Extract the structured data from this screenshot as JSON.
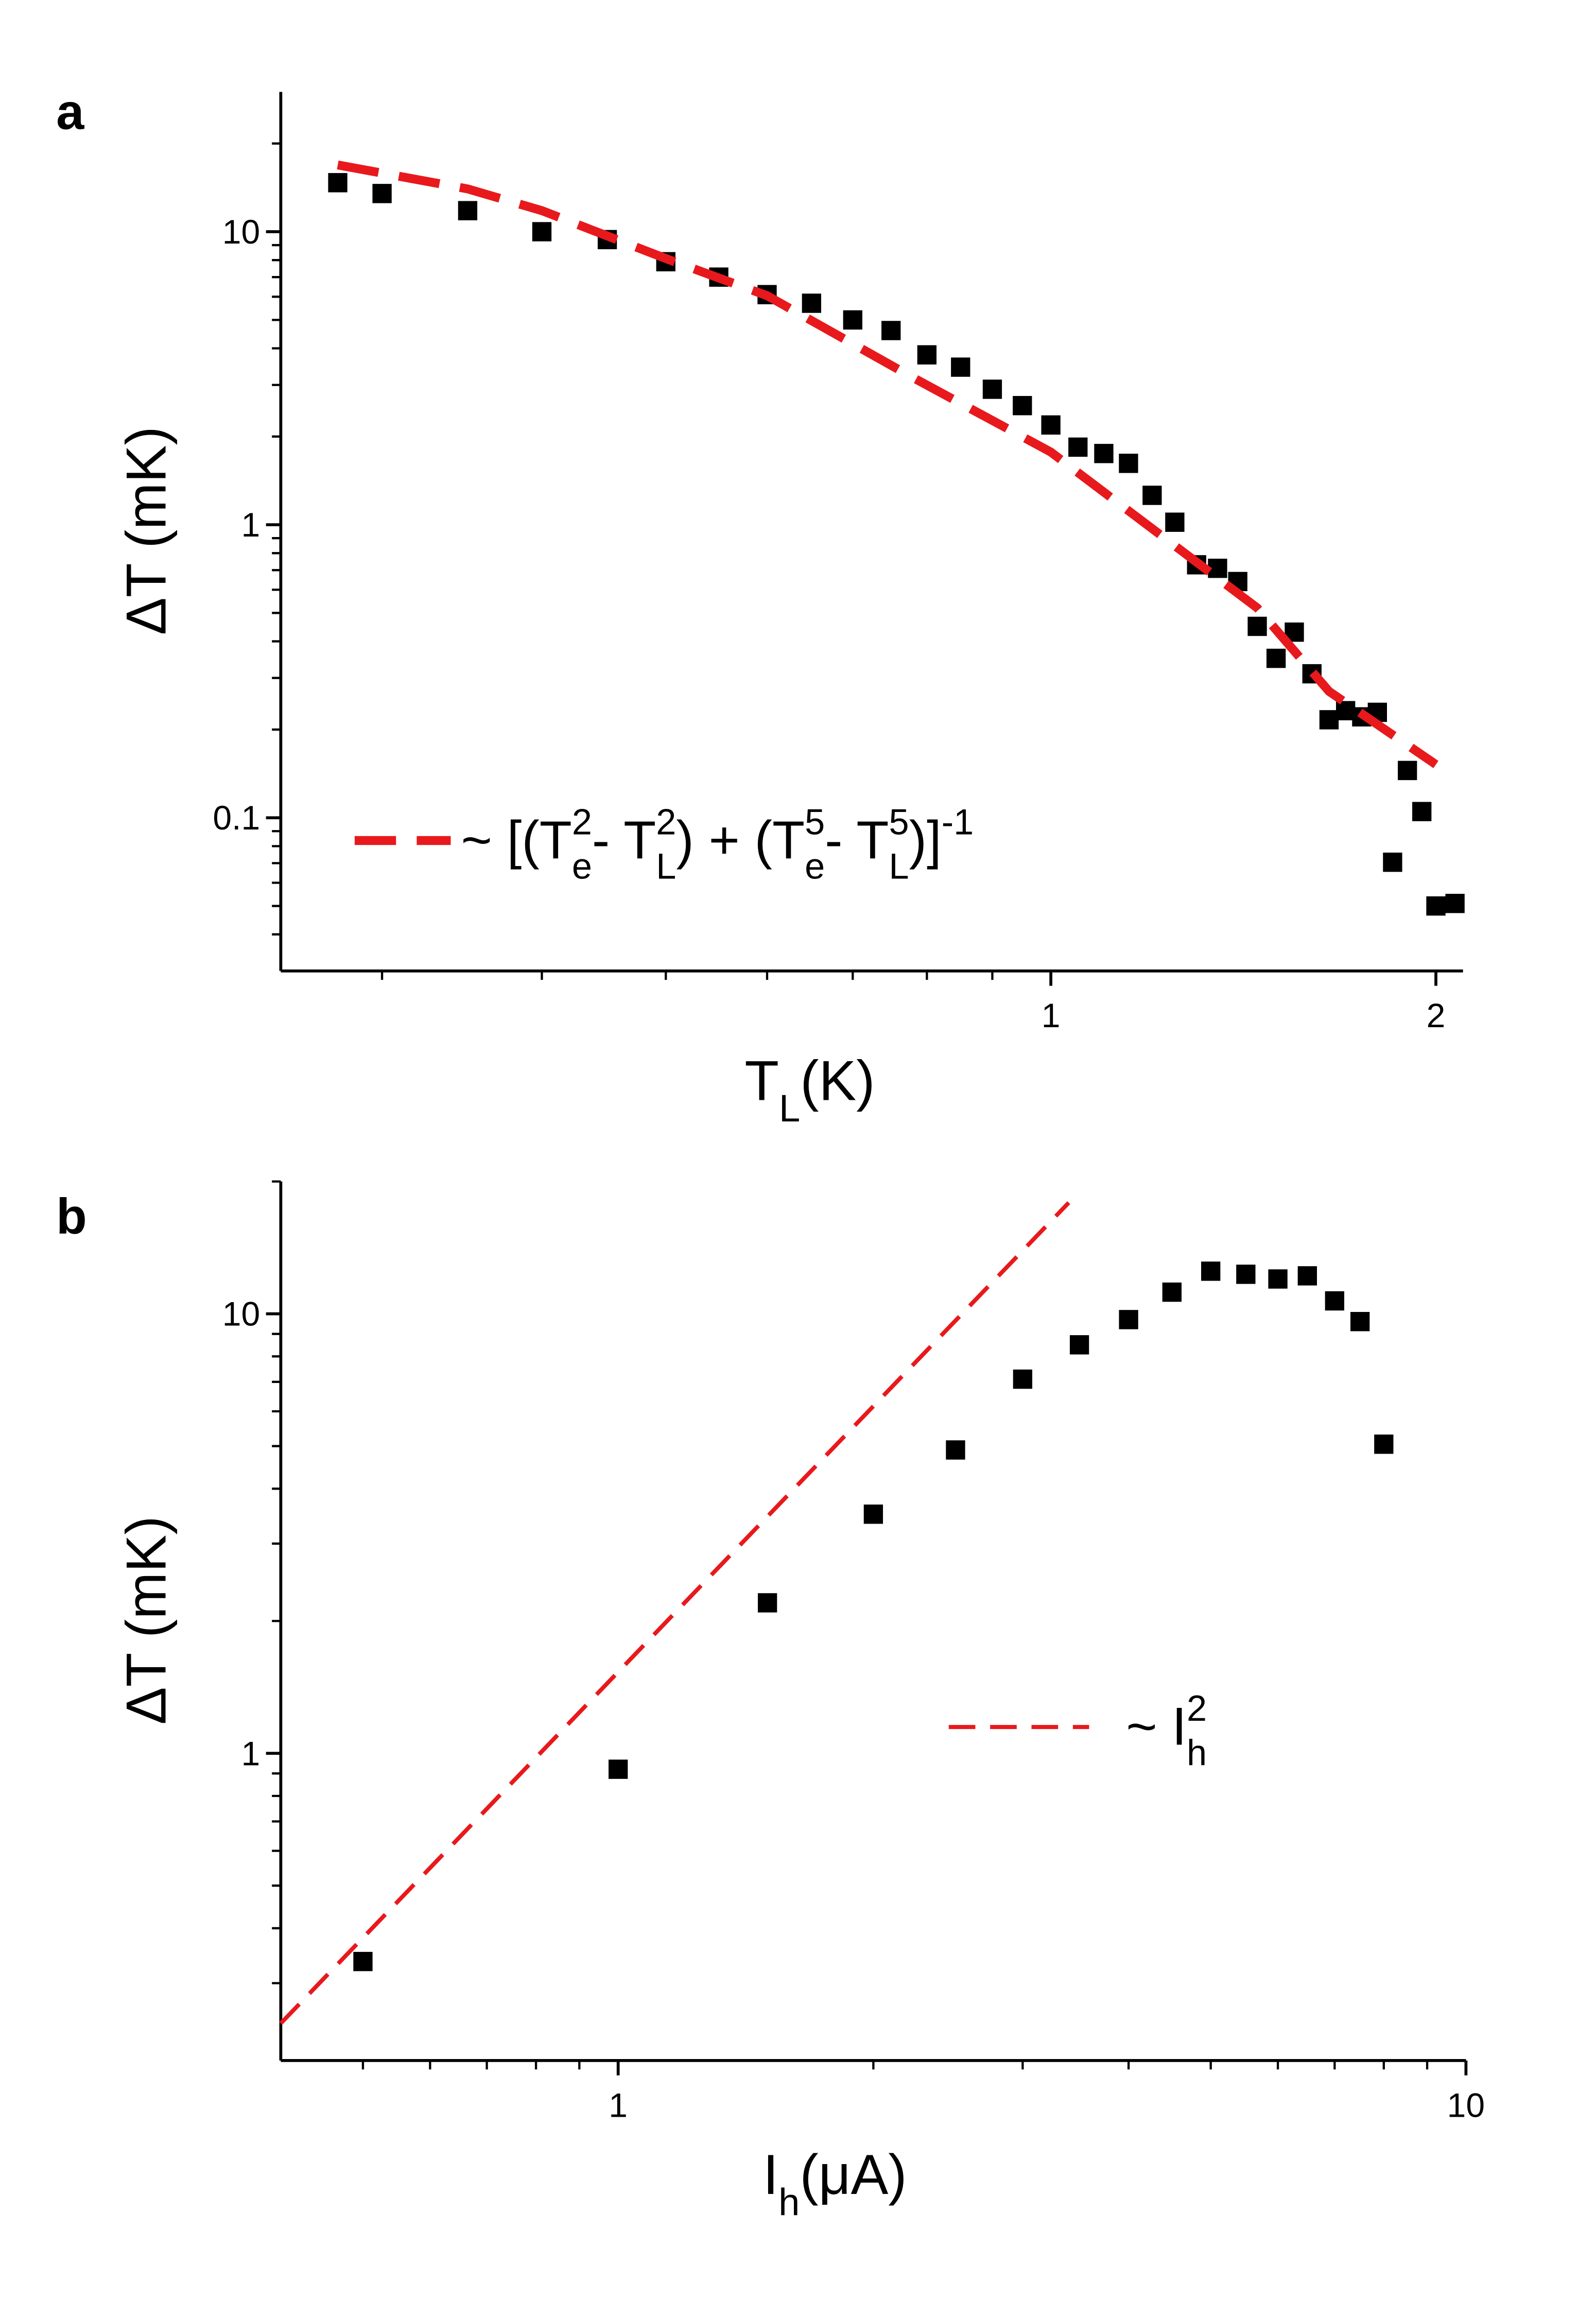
{
  "chart_data": [
    {
      "type": "scatter",
      "panel_label": "a",
      "xscale": "log",
      "yscale": "log",
      "x_label": [
        {
          "text": "T"
        },
        {
          "text": "L",
          "script": "sub"
        },
        {
          "text": " (K)"
        }
      ],
      "y_label": [
        {
          "text": "ΔT (mK)"
        }
      ],
      "xlim": [
        0.25,
        2.1
      ],
      "ylim": [
        0.03,
        30
      ],
      "xticks": [
        1,
        2
      ],
      "yticks": [
        0.1,
        1,
        10
      ],
      "xminorticks": [
        0.3,
        0.4,
        0.5,
        0.6,
        0.7,
        0.8,
        0.9
      ],
      "yminorticks": [
        0.04,
        0.05,
        0.06,
        0.07,
        0.08,
        0.09,
        0.2,
        0.3,
        0.4,
        0.5,
        0.6,
        0.7,
        0.8,
        0.9,
        2,
        3,
        4,
        5,
        6,
        7,
        8,
        9,
        20
      ],
      "series": [
        {
          "marker": "square",
          "color": "#000000",
          "x": [
            0.277,
            0.3,
            0.35,
            0.4,
            0.45,
            0.5,
            0.55,
            0.6,
            0.65,
            0.7,
            0.75,
            0.8,
            0.85,
            0.9,
            0.95,
            1.0,
            1.05,
            1.1,
            1.15,
            1.2,
            1.25,
            1.3,
            1.35,
            1.4,
            1.45,
            1.5,
            1.55,
            1.6,
            1.65,
            1.7,
            1.75,
            1.8,
            1.85,
            1.9,
            1.95,
            2.0,
            2.07
          ],
          "values": [
            14.7,
            13.5,
            11.8,
            10.0,
            9.4,
            7.9,
            7.0,
            6.1,
            5.7,
            5.0,
            4.6,
            3.8,
            3.45,
            2.9,
            2.55,
            2.19,
            1.84,
            1.75,
            1.62,
            1.26,
            1.02,
            0.73,
            0.71,
            0.64,
            0.45,
            0.35,
            0.43,
            0.31,
            0.216,
            0.232,
            0.221,
            0.229,
            0.0705,
            0.145,
            0.105,
            0.05,
            0.051
          ]
        },
        {
          "marker": "dashed-line",
          "color": "#e8191c",
          "name": [
            {
              "text": "~ [(T"
            },
            {
              "text": "e",
              "script": "sub"
            },
            {
              "text": "2",
              "script": "sup"
            },
            {
              "text": " - T"
            },
            {
              "text": "L",
              "script": "sub"
            },
            {
              "text": "2",
              "script": "sup"
            },
            {
              "text": ") + (T"
            },
            {
              "text": "e",
              "script": "sub"
            },
            {
              "text": "5",
              "script": "sup"
            },
            {
              "text": " - T"
            },
            {
              "text": "L",
              "script": "sub"
            },
            {
              "text": "5",
              "script": "sup"
            },
            {
              "text": ")]"
            },
            {
              "text": "-1",
              "script": "sup"
            }
          ],
          "x": [
            0.277,
            0.35,
            0.4,
            0.5,
            0.6,
            0.78,
            1.0,
            1.2,
            1.45,
            1.65,
            2.0
          ],
          "values": [
            16.9,
            14.0,
            11.8,
            8.1,
            6.05,
            3.18,
            1.77,
            0.97,
            0.52,
            0.27,
            0.152
          ]
        }
      ]
    },
    {
      "type": "scatter",
      "panel_label": "b",
      "xscale": "log",
      "yscale": "log",
      "x_label": [
        {
          "text": "I"
        },
        {
          "text": "h",
          "script": "sub"
        },
        {
          "text": " (μA)"
        }
      ],
      "y_label": [
        {
          "text": "ΔT (mK)"
        }
      ],
      "xlim": [
        0.4,
        10
      ],
      "ylim": [
        0.2,
        20
      ],
      "xticks": [
        1,
        10
      ],
      "yticks": [
        1,
        10
      ],
      "xminorticks": [
        0.5,
        0.6,
        0.7,
        0.8,
        0.9,
        2,
        3,
        4,
        5,
        6,
        7,
        8,
        9
      ],
      "yminorticks": [
        0.3,
        0.4,
        0.5,
        0.6,
        0.7,
        0.8,
        0.9,
        2,
        3,
        4,
        5,
        6,
        7,
        8,
        9,
        20
      ],
      "series": [
        {
          "marker": "square",
          "color": "#000000",
          "x": [
            0.5,
            1.0,
            1.5,
            2.0,
            2.5,
            3.0,
            3.5,
            4.0,
            4.5,
            5.0,
            5.5,
            6.0,
            6.5,
            7.0,
            7.5,
            8.0
          ],
          "values": [
            0.336,
            0.92,
            2.2,
            3.5,
            4.9,
            7.1,
            8.5,
            9.7,
            11.2,
            12.5,
            12.3,
            12.0,
            12.2,
            10.7,
            9.6,
            5.05
          ]
        },
        {
          "marker": "dashed-line",
          "color": "#e8191c",
          "name": [
            {
              "text": "~ I"
            },
            {
              "text": "h",
              "script": "sub"
            },
            {
              "text": "2",
              "script": "sup"
            }
          ],
          "x": [
            0.4,
            3.4
          ],
          "values": [
            0.243,
            17.9
          ]
        }
      ]
    }
  ]
}
